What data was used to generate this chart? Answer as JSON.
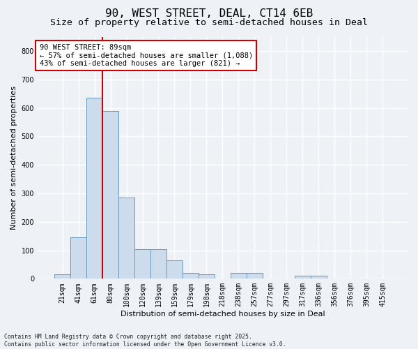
{
  "title_line1": "90, WEST STREET, DEAL, CT14 6EB",
  "title_line2": "Size of property relative to semi-detached houses in Deal",
  "xlabel": "Distribution of semi-detached houses by size in Deal",
  "ylabel": "Number of semi-detached properties",
  "categories": [
    "21sqm",
    "41sqm",
    "61sqm",
    "80sqm",
    "100sqm",
    "120sqm",
    "139sqm",
    "159sqm",
    "179sqm",
    "198sqm",
    "218sqm",
    "238sqm",
    "257sqm",
    "277sqm",
    "297sqm",
    "317sqm",
    "336sqm",
    "356sqm",
    "376sqm",
    "395sqm",
    "415sqm"
  ],
  "bar_heights": [
    15,
    145,
    635,
    590,
    285,
    103,
    103,
    65,
    20,
    15,
    0,
    20,
    20,
    0,
    0,
    10,
    10,
    0,
    0,
    0,
    0
  ],
  "bar_color": "#ccdcec",
  "bar_edge_color": "#6699bb",
  "red_line_index": 3,
  "red_line_label": "90 WEST STREET: 89sqm",
  "annotation_smaller": "← 57% of semi-detached houses are smaller (1,088)",
  "annotation_larger": "43% of semi-detached houses are larger (821) →",
  "annotation_box_color": "#ffffff",
  "annotation_box_edge": "#cc0000",
  "vline_color": "#cc0000",
  "ylim": [
    0,
    850
  ],
  "yticks": [
    0,
    100,
    200,
    300,
    400,
    500,
    600,
    700,
    800
  ],
  "background_color": "#eef2f7",
  "grid_color": "#ffffff",
  "footnote": "Contains HM Land Registry data © Crown copyright and database right 2025.\nContains public sector information licensed under the Open Government Licence v3.0.",
  "title_fontsize": 11.5,
  "subtitle_fontsize": 9.5,
  "label_fontsize": 8,
  "tick_fontsize": 7,
  "annot_fontsize": 7.5,
  "footnote_fontsize": 5.8
}
